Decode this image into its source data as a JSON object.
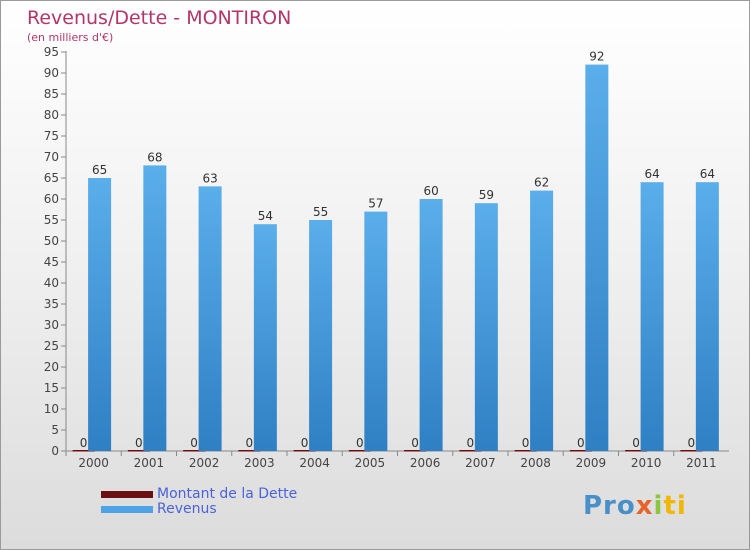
{
  "chart_data": {
    "type": "bar",
    "title": "Revenus/Dette - MONTIRON",
    "subtitle": "(en milliers d'€)",
    "categories": [
      "2000",
      "2001",
      "2002",
      "2003",
      "2004",
      "2005",
      "2006",
      "2007",
      "2008",
      "2009",
      "2010",
      "2011"
    ],
    "series": [
      {
        "name": "Montant de la Dette",
        "color": "#6b0f12",
        "values": [
          0,
          0,
          0,
          0,
          0,
          0,
          0,
          0,
          0,
          0,
          0,
          0
        ]
      },
      {
        "name": "Revenus",
        "color": "#4da3e6",
        "values": [
          65,
          68,
          63,
          54,
          55,
          57,
          60,
          59,
          62,
          92,
          64,
          64
        ]
      }
    ],
    "ylim": [
      0,
      95
    ],
    "yticks": [
      0,
      5,
      10,
      15,
      20,
      25,
      30,
      35,
      40,
      45,
      50,
      55,
      60,
      65,
      70,
      75,
      80,
      85,
      90,
      95
    ],
    "grid": false,
    "legend_position": "bottom-left"
  },
  "logo": {
    "text": "Proxiti",
    "parts": [
      "Pro",
      "x",
      "i",
      "ti"
    ]
  }
}
